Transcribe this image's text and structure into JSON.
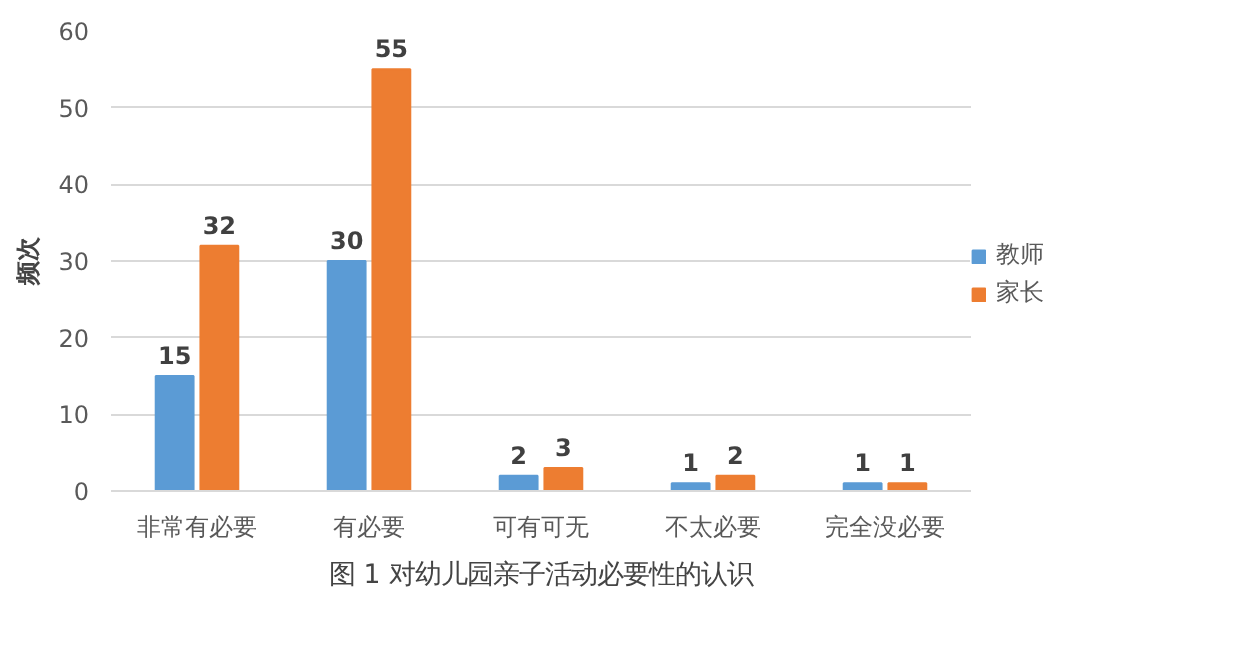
{
  "chart_data": {
    "type": "bar",
    "categories": [
      "非常有必要",
      "有必要",
      "可有可无",
      "不太必要",
      "完全没必要"
    ],
    "series": [
      {
        "name": "教师",
        "color": "#5b9bd5",
        "values": [
          15,
          30,
          2,
          1,
          1
        ]
      },
      {
        "name": "家长",
        "color": "#ed7d31",
        "values": [
          32,
          55,
          3,
          2,
          1
        ]
      }
    ],
    "ylabel": "频次",
    "ylim": [
      0,
      60
    ],
    "yticks": [
      0,
      10,
      20,
      30,
      40,
      50,
      60
    ],
    "grid": "y",
    "legend": "right",
    "data_labels": true,
    "annotations": [
      "图 1 对幼儿园亲子活动必要性的认识"
    ]
  }
}
